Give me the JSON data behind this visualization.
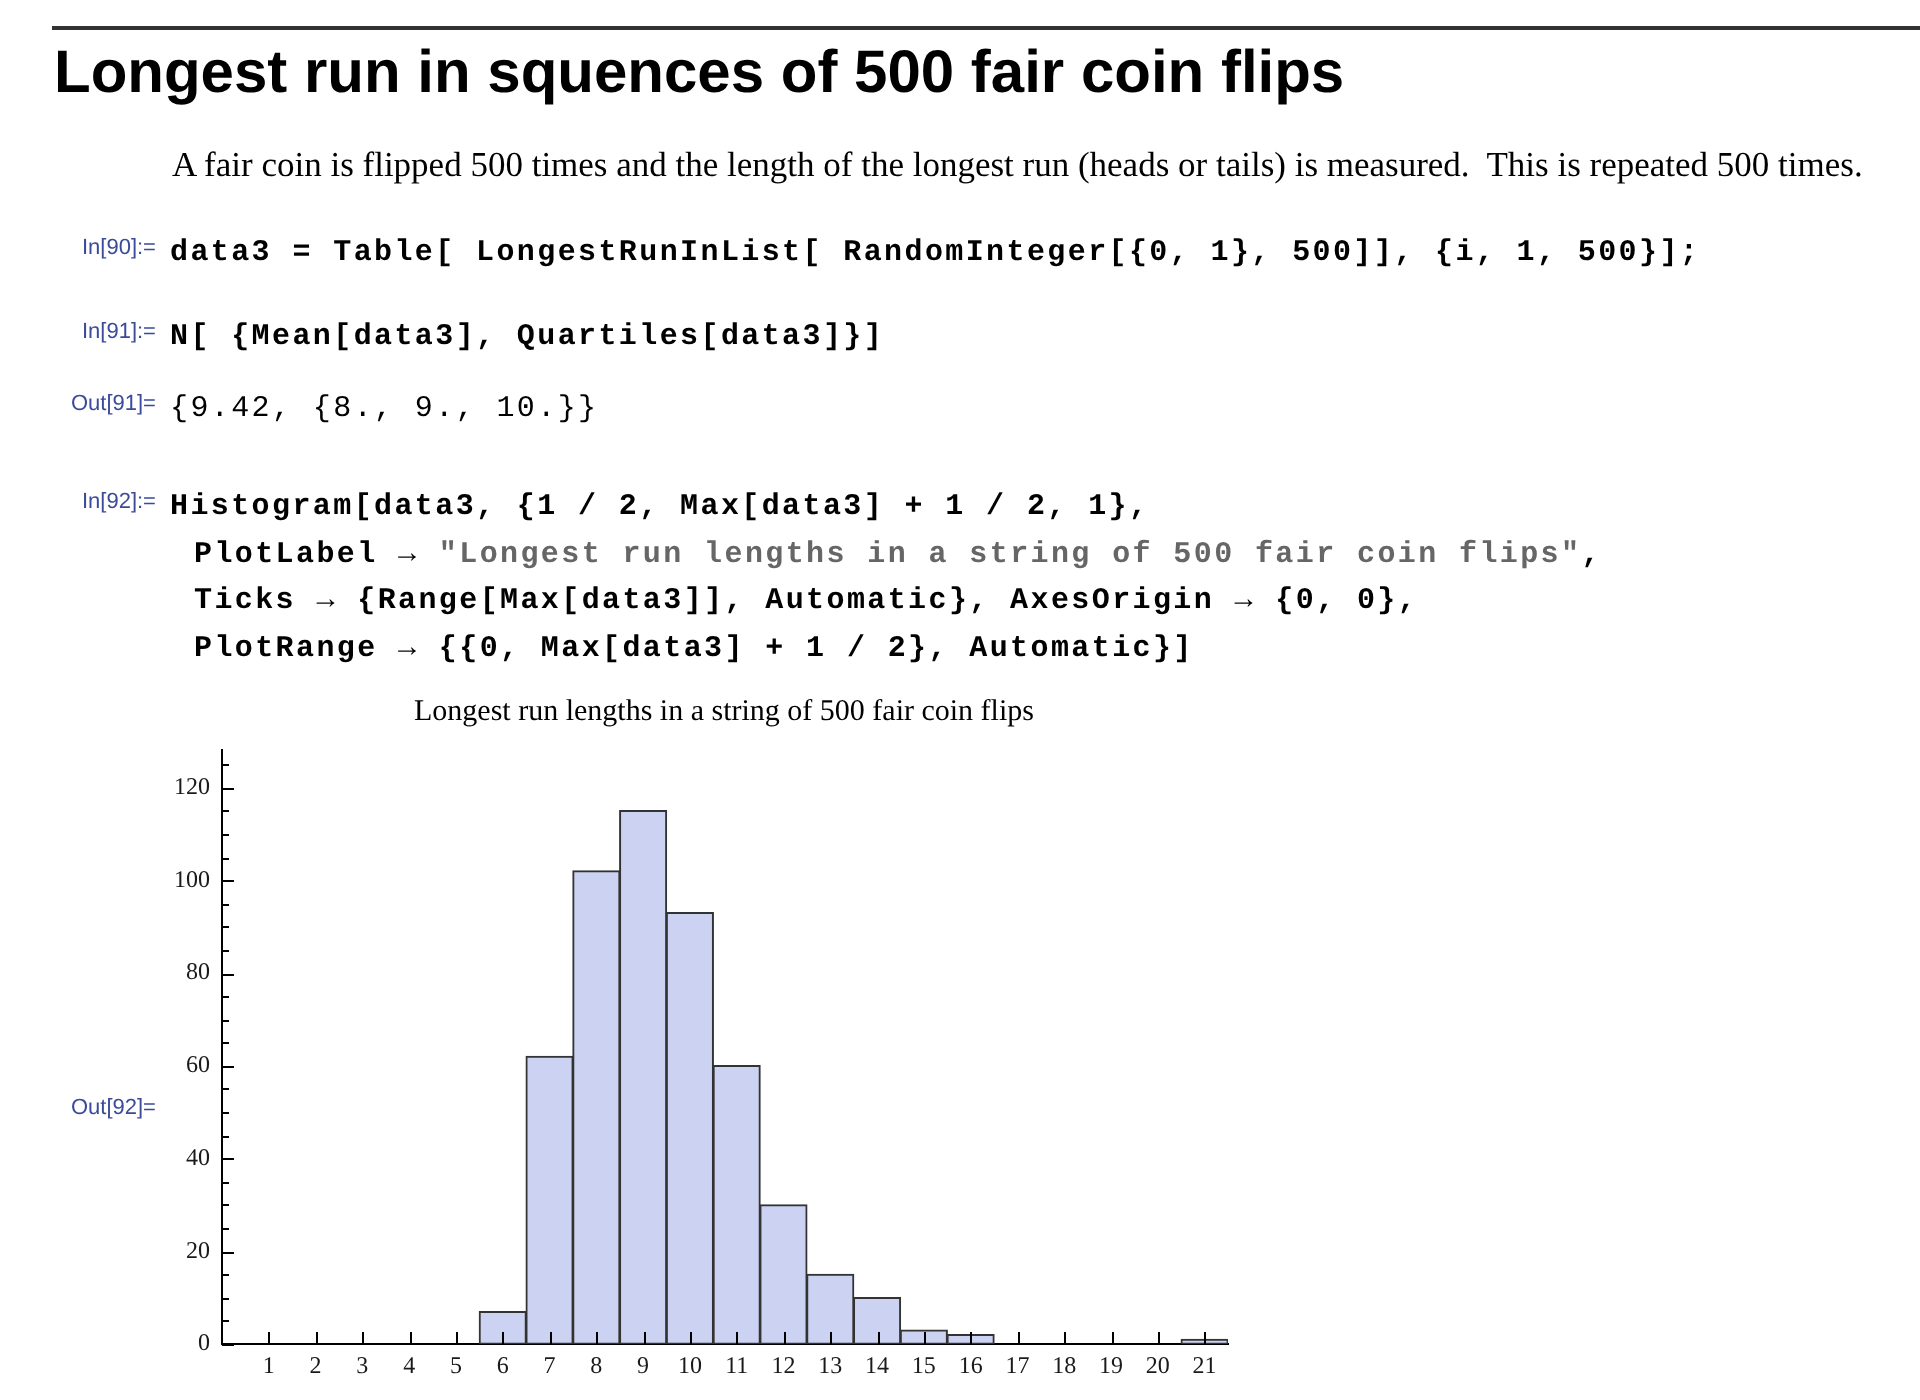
{
  "chart_data": {
    "type": "histogram",
    "title": "Longest run in squences of 500 fair coin flips",
    "subtitle": "A fair coin is flipped 500 times and the length of the longest run (heads or tails) is measured.  This is repeated 500 times.",
    "annotations": [
      "In[90]:=",
      "data3 = Table[ LongestRunInList[ RandomInteger[{0, 1}, 500]], {i, 1, 500}];",
      "In[91]:=",
      "N[ {Mean[data3], Quartiles[data3]}]",
      "Out[91]=",
      "{9.42, {8., 9., 10.}}",
      "In[92]:=",
      "Histogram[data3, {1 / 2, Max[data3] + 1 / 2, 1},",
      "PlotLabel → \"Longest run lengths in a string of 500 fair coin flips\",",
      "Ticks → {Range[Max[data3]], Automatic}, AxesOrigin → {0, 0},",
      "PlotRange → {{0, Max[data3] + 1 / 2}, Automatic}]",
      "Longest run lengths in a string of 500 fair coin flips",
      "Out[92]="
    ],
    "bins": [
      0.5,
      1.5,
      2.5,
      3.5,
      4.5,
      5.5,
      6.5,
      7.5,
      8.5,
      9.5,
      10.5,
      11.5,
      12.5,
      13.5,
      14.5,
      15.5,
      16.5,
      17.5,
      18.5,
      19.5,
      20.5,
      21.5
    ],
    "values": [
      0,
      0,
      0,
      0,
      0,
      7,
      62,
      102,
      115,
      93,
      60,
      30,
      15,
      10,
      3,
      2,
      0,
      0,
      0,
      0,
      1
    ],
    "color": "#ccd2f2",
    "xlim": [
      0,
      21.5
    ],
    "xticks": [
      1,
      2,
      3,
      4,
      5,
      6,
      7,
      8,
      9,
      10,
      11,
      12,
      13,
      14,
      15,
      16,
      17,
      18,
      19,
      20,
      21
    ],
    "ylim": [
      0,
      128
    ],
    "yticks": [
      0,
      {
        "value": 5,
        "label": null
      },
      {
        "value": 10,
        "label": null
      },
      {
        "value": 15,
        "label": null
      },
      20,
      {
        "value": 25,
        "label": null
      },
      {
        "value": 30,
        "label": null
      },
      {
        "value": 35,
        "label": null
      },
      40,
      {
        "value": 45,
        "label": null
      },
      {
        "value": 50,
        "label": null
      },
      {
        "value": 55,
        "label": null
      },
      60,
      {
        "value": 65,
        "label": null
      },
      {
        "value": 70,
        "label": null
      },
      {
        "value": 75,
        "label": null
      },
      80,
      {
        "value": 85,
        "label": null
      },
      {
        "value": 90,
        "label": null
      },
      {
        "value": 95,
        "label": null
      },
      100,
      {
        "value": 105,
        "label": null
      },
      {
        "value": 110,
        "label": null
      },
      {
        "value": 115,
        "label": null
      },
      120,
      {
        "value": 125,
        "label": null
      }
    ],
    "grid": false
  }
}
